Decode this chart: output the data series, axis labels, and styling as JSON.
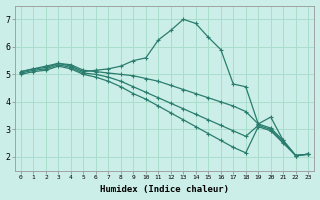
{
  "xlabel": "Humidex (Indice chaleur)",
  "bg_color": "#cceee8",
  "grid_color": "#aaddcc",
  "line_color": "#2a7d6e",
  "xlim": [
    -0.5,
    23.5
  ],
  "ylim": [
    1.5,
    7.5
  ],
  "xticks": [
    0,
    1,
    2,
    3,
    4,
    5,
    6,
    7,
    8,
    9,
    10,
    11,
    12,
    13,
    14,
    15,
    16,
    17,
    18,
    19,
    20,
    21,
    22,
    23
  ],
  "yticks": [
    2,
    3,
    4,
    5,
    6,
    7
  ],
  "series": [
    {
      "x": [
        0,
        1,
        2,
        3,
        4,
        5,
        6,
        7,
        8,
        9,
        10,
        11,
        12,
        13,
        14,
        15,
        16,
        17,
        18,
        19,
        20,
        21,
        22,
        23
      ],
      "y": [
        5.1,
        5.2,
        5.25,
        5.4,
        5.3,
        5.1,
        5.15,
        5.2,
        5.3,
        5.5,
        5.6,
        6.25,
        6.6,
        7.0,
        6.85,
        6.35,
        5.9,
        4.65,
        4.55,
        3.2,
        3.45,
        2.6,
        2.05,
        2.1
      ]
    },
    {
      "x": [
        0,
        1,
        2,
        3,
        4,
        5,
        6,
        7,
        8,
        9,
        10,
        11,
        12,
        13,
        14,
        15,
        16,
        17,
        18,
        19,
        20,
        21,
        22,
        23
      ],
      "y": [
        5.1,
        5.2,
        5.3,
        5.4,
        5.35,
        5.15,
        5.1,
        5.05,
        5.0,
        4.95,
        4.85,
        4.75,
        4.6,
        4.45,
        4.3,
        4.15,
        4.0,
        3.85,
        3.65,
        3.2,
        3.05,
        2.6,
        2.05,
        2.1
      ]
    },
    {
      "x": [
        0,
        1,
        2,
        3,
        4,
        5,
        6,
        7,
        8,
        9,
        10,
        11,
        12,
        13,
        14,
        15,
        16,
        17,
        18,
        19,
        20,
        21,
        22,
        23
      ],
      "y": [
        5.05,
        5.15,
        5.2,
        5.35,
        5.25,
        5.05,
        5.0,
        4.9,
        4.75,
        4.55,
        4.35,
        4.15,
        3.95,
        3.75,
        3.55,
        3.35,
        3.15,
        2.95,
        2.75,
        3.15,
        3.0,
        2.55,
        2.05,
        2.1
      ]
    },
    {
      "x": [
        0,
        1,
        2,
        3,
        4,
        5,
        6,
        7,
        8,
        9,
        10,
        11,
        12,
        13,
        14,
        15,
        16,
        17,
        18,
        19,
        20,
        21,
        22,
        23
      ],
      "y": [
        5.0,
        5.1,
        5.15,
        5.3,
        5.2,
        5.0,
        4.9,
        4.75,
        4.55,
        4.3,
        4.1,
        3.85,
        3.6,
        3.35,
        3.1,
        2.85,
        2.6,
        2.35,
        2.15,
        3.1,
        2.95,
        2.5,
        2.05,
        2.1
      ]
    }
  ]
}
